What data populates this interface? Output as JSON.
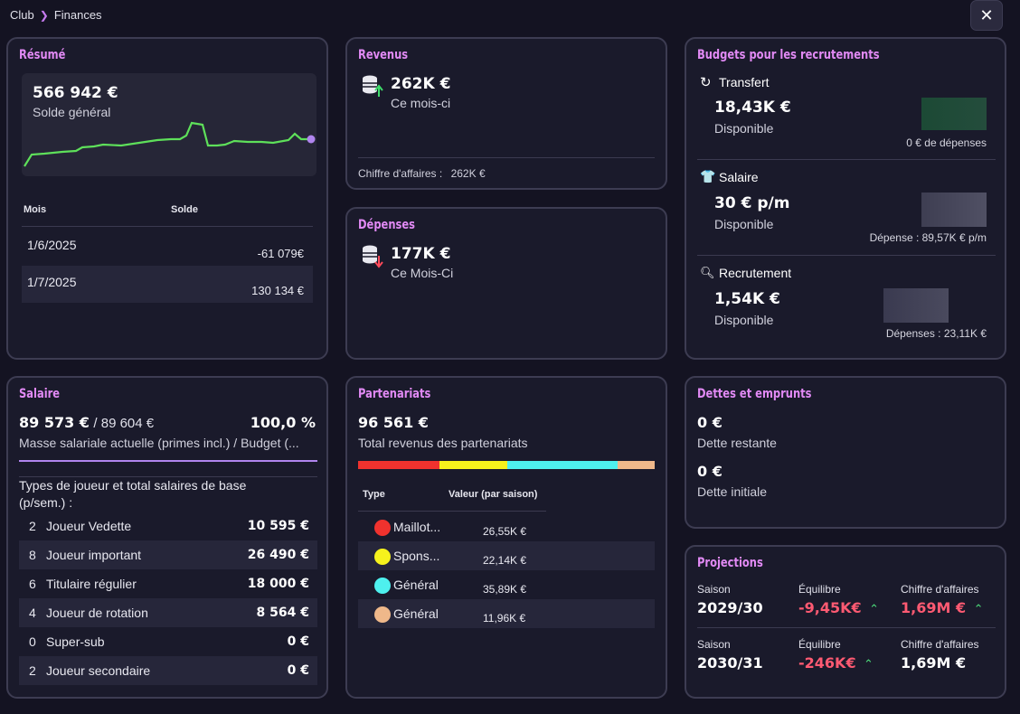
{
  "breadcrumb": {
    "root": "Club",
    "current": "Finances"
  },
  "close_label": "✕",
  "resume": {
    "title": "Résumé",
    "balance": "566 942 €",
    "balance_label": "Solde général",
    "col_month": "Mois",
    "col_balance": "Solde",
    "rows": [
      {
        "month": "1/6/2025",
        "balance": "-61 079€"
      },
      {
        "month": "1/7/2025",
        "balance": "130 134 €"
      }
    ],
    "accent": "#5ee05a",
    "endpoint": "#b085ee"
  },
  "revenus": {
    "title": "Revenus",
    "amount": "262K €",
    "period": "Ce mois-ci",
    "footer_label": "Chiffre d'affaires :",
    "footer_value": "262K €",
    "icon": "coins-up-icon"
  },
  "depenses": {
    "title": "Dépenses",
    "amount": "177K €",
    "period": "Ce Mois-Ci",
    "icon": "coins-down-icon"
  },
  "budgets": {
    "title": "Budgets pour les recrutements",
    "items": [
      {
        "name": "Transfert",
        "amount": "18,43K €",
        "label": "Disponible",
        "note": "0 € de dépenses",
        "icon": "refresh-icon",
        "bar_color": "#1f4536"
      },
      {
        "name": "Salaire",
        "amount": "30 € p/m",
        "label": "Disponible",
        "note": "Dépense : 89,57K € p/m",
        "icon": "shirt-icon",
        "bar_color": "#4a4a5e"
      },
      {
        "name": "Recrutement",
        "amount": "1,54K €",
        "label": "Disponible",
        "note": "Dépenses : 23,11K €",
        "icon": "magnifier-icon",
        "bar_color": "#44445a"
      }
    ]
  },
  "salaire": {
    "title": "Salaire",
    "current": "89 573 €",
    "budget": "/ 89 604 €",
    "percent": "100,0 %",
    "caption": "Masse salariale actuelle (primes incl.) / Budget (...",
    "progress": 1.0,
    "types_caption": "Types de joueur et total salaires de base (p/sem.) :",
    "rows": [
      {
        "count": "2",
        "type": "Joueur Vedette",
        "amount": "10 595 €"
      },
      {
        "count": "8",
        "type": "Joueur important",
        "amount": "26 490 €"
      },
      {
        "count": "6",
        "type": "Titulaire régulier",
        "amount": "18 000 €"
      },
      {
        "count": "4",
        "type": "Joueur de rotation",
        "amount": "8 564 €"
      },
      {
        "count": "0",
        "type": "Super-sub",
        "amount": "0 €"
      },
      {
        "count": "2",
        "type": "Joueur secondaire",
        "amount": "0 €"
      }
    ]
  },
  "partenariats": {
    "title": "Partenariats",
    "total": "96 561 €",
    "total_label": "Total revenus des partenariats",
    "col_type": "Type",
    "col_value": "Valeur (par saison)",
    "rows": [
      {
        "type": "Maillot...",
        "value": "26,55K €",
        "color": "#f0322e"
      },
      {
        "type": "Spons...",
        "value": "22,14K €",
        "color": "#f6f21c"
      },
      {
        "type": "Général",
        "value": "35,89K €",
        "color": "#4ef0ee"
      },
      {
        "type": "Général",
        "value": "11,96K €",
        "color": "#efb88a"
      }
    ]
  },
  "dettes": {
    "title": "Dettes et emprunts",
    "remaining": "0 €",
    "remaining_label": "Dette restante",
    "initial": "0 €",
    "initial_label": "Dette initiale"
  },
  "projections": {
    "title": "Projections",
    "rows": [
      {
        "season_label": "Saison",
        "season": "2029/30",
        "balance_label": "Équilibre",
        "balance": "-9,45K€",
        "revenue_label": "Chiffre d'affaires",
        "revenue": "1,69M €",
        "revenue_red": true
      },
      {
        "season_label": "Saison",
        "season": "2030/31",
        "balance_label": "Équilibre",
        "balance": "-246K€",
        "revenue_label": "Chiffre d'affaires",
        "revenue": "1,69M €",
        "revenue_red": false
      }
    ]
  }
}
